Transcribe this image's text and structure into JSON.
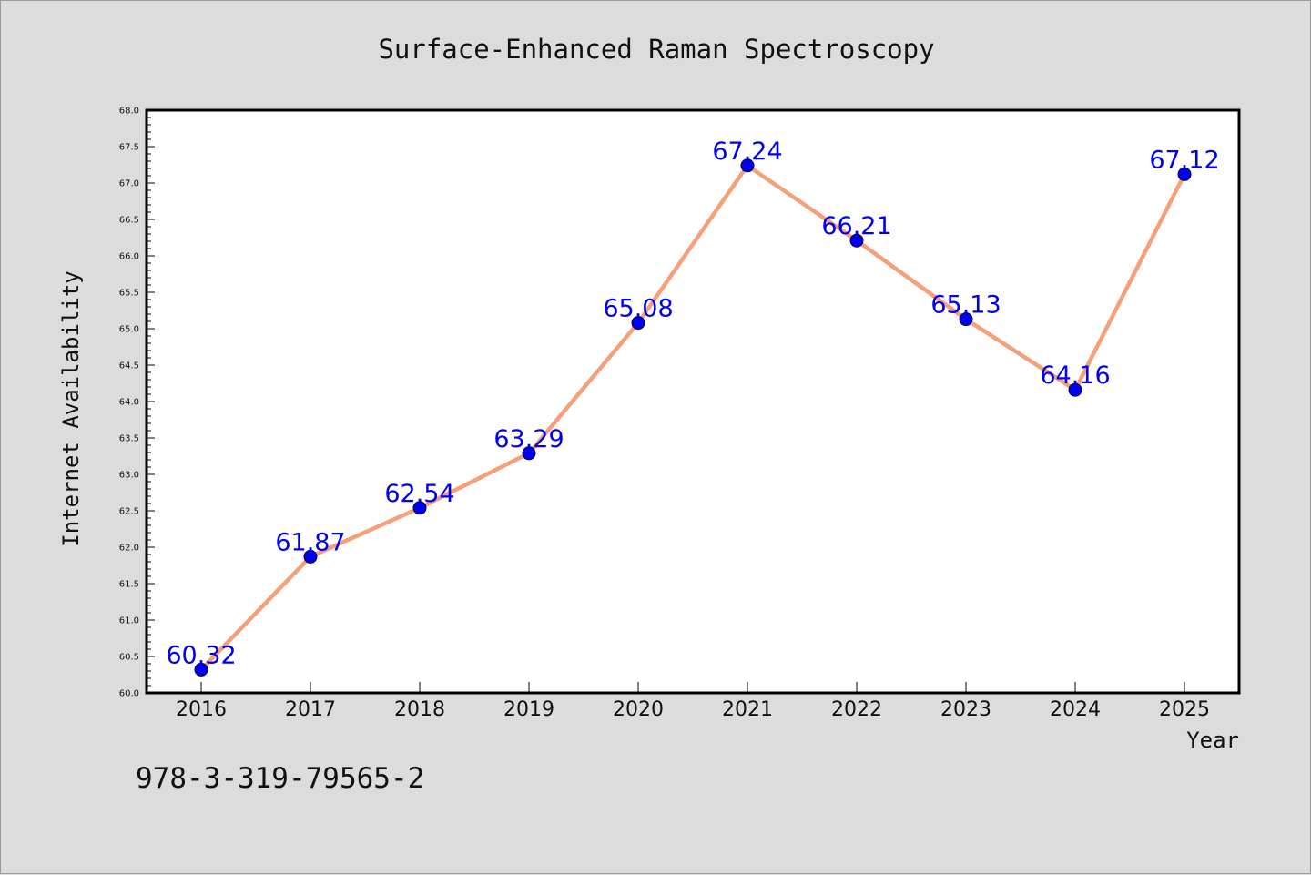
{
  "chart_data": {
    "type": "line",
    "title": "Surface-Enhanced Raman Spectroscopy",
    "xlabel": "Year",
    "ylabel": "Internet Availability",
    "categories": [
      "2016",
      "2017",
      "2018",
      "2019",
      "2020",
      "2021",
      "2022",
      "2023",
      "2024",
      "2025"
    ],
    "series": [
      {
        "values": [
          60.32,
          61.87,
          62.54,
          63.29,
          65.08,
          67.24,
          66.21,
          65.13,
          64.16,
          67.12
        ],
        "labels": [
          "60.32",
          "61.87",
          "62.54",
          "63.29",
          "65.08",
          "67.24",
          "66.21",
          "65.13",
          "64.16",
          "67.12"
        ],
        "line_color": "#f5a07a",
        "marker_color": "#0000ee",
        "label_color": "#0000ee"
      }
    ],
    "ylim": [
      60.0,
      68.0
    ],
    "yticks": [
      "60.0",
      "60.5",
      "61.0",
      "61.5",
      "62.0",
      "62.5",
      "63.0",
      "63.5",
      "64.0",
      "64.5",
      "65.0",
      "65.5",
      "66.0",
      "66.5",
      "67.0",
      "67.5",
      "68.0"
    ],
    "grid": false,
    "legend": "none",
    "background_color": "#dcdcdc",
    "plot_background_color": "#ffffff"
  },
  "footnote": "978-3-319-79565-2"
}
